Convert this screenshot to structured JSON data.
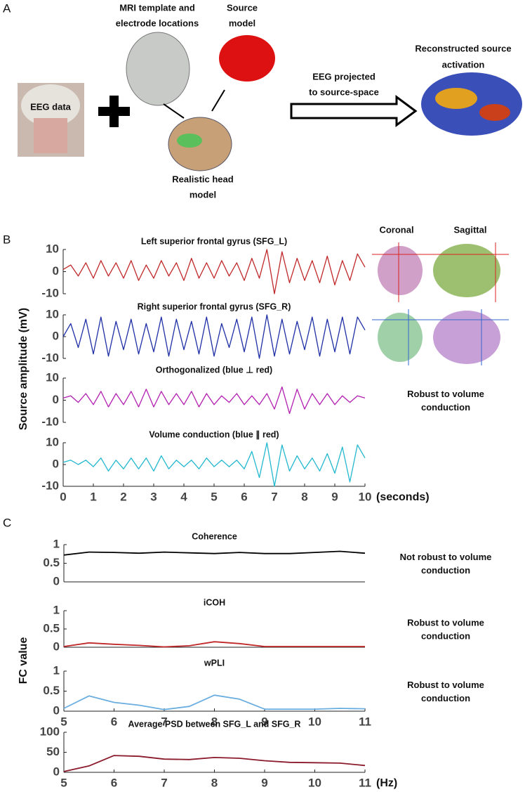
{
  "panel_a": {
    "label": "A",
    "eeg": "EEG data",
    "mri": [
      "MRI template and",
      "electrode locations"
    ],
    "source": [
      "Source",
      "model"
    ],
    "head": [
      "Realistic head",
      "model"
    ],
    "projected": [
      "EEG projected",
      "to source-space"
    ],
    "reconstructed": [
      "Reconstructed source",
      "activation"
    ]
  },
  "panel_b": {
    "label": "B",
    "ylabel": "Source amplitude (mV)",
    "coronal": "Coronal",
    "sagittal": "Sagittal"
  },
  "panel_c": {
    "label": "C",
    "ylabel": "FC value"
  },
  "chart_data": [
    {
      "type": "line",
      "title": "Left superior frontal gyrus (SFG_L)",
      "x": [
        0,
        0.25,
        0.5,
        0.75,
        1,
        1.25,
        1.5,
        1.75,
        2,
        2.25,
        2.5,
        2.75,
        3,
        3.25,
        3.5,
        3.75,
        4,
        4.25,
        4.5,
        4.75,
        5,
        5.25,
        5.5,
        5.75,
        6,
        6.25,
        6.5,
        6.75,
        7,
        7.25,
        7.5,
        7.75,
        8,
        8.25,
        8.5,
        8.75,
        9,
        9.25,
        9.5,
        9.75,
        10
      ],
      "series": [
        {
          "color": "#c0282a",
          "values": [
            1,
            3,
            -2,
            4,
            -3,
            5,
            -2,
            4,
            -3,
            5,
            -4,
            3,
            -3,
            5,
            -2,
            4,
            -4,
            6,
            -3,
            4,
            -3,
            5,
            -2,
            4,
            -4,
            6,
            -3,
            10,
            -10,
            9,
            -5,
            6,
            -4,
            5,
            -5,
            7,
            -6,
            5,
            -4,
            8,
            2
          ]
        }
      ],
      "xlim": [
        0,
        10
      ],
      "ylim": [
        -10,
        10
      ],
      "yticks": [
        -10,
        0,
        10
      ]
    },
    {
      "type": "line",
      "title": "Right superior frontal gyrus (SFG_R)",
      "x": [
        0,
        0.25,
        0.5,
        0.75,
        1,
        1.25,
        1.5,
        1.75,
        2,
        2.25,
        2.5,
        2.75,
        3,
        3.25,
        3.5,
        3.75,
        4,
        4.25,
        4.5,
        4.75,
        5,
        5.25,
        5.5,
        5.75,
        6,
        6.25,
        6.5,
        6.75,
        7,
        7.25,
        7.5,
        7.75,
        8,
        8.25,
        8.5,
        8.75,
        9,
        9.25,
        9.5,
        9.75,
        10
      ],
      "series": [
        {
          "color": "#1f2fa6",
          "values": [
            0,
            6,
            -5,
            8,
            -8,
            9,
            -9,
            7,
            -6,
            8,
            -8,
            6,
            -7,
            9,
            -9,
            8,
            -6,
            7,
            -8,
            9,
            -9,
            6,
            -5,
            8,
            -7,
            9,
            -10,
            10,
            -9,
            8,
            -8,
            7,
            -6,
            9,
            -9,
            8,
            -7,
            9,
            -8,
            9,
            3
          ]
        }
      ],
      "xlim": [
        0,
        10
      ],
      "ylim": [
        -10,
        10
      ],
      "yticks": [
        -10,
        0,
        10
      ]
    },
    {
      "type": "line",
      "title": "Orthogonalized (blue ⊥ red)",
      "annotation": [
        "Robust to volume",
        "conduction"
      ],
      "x": [
        0,
        0.25,
        0.5,
        0.75,
        1,
        1.25,
        1.5,
        1.75,
        2,
        2.25,
        2.5,
        2.75,
        3,
        3.25,
        3.5,
        3.75,
        4,
        4.25,
        4.5,
        4.75,
        5,
        5.25,
        5.5,
        5.75,
        6,
        6.25,
        6.5,
        6.75,
        7,
        7.25,
        7.5,
        7.75,
        8,
        8.25,
        8.5,
        8.75,
        9,
        9.25,
        9.5,
        9.75,
        10
      ],
      "series": [
        {
          "color": "#b21fb0",
          "values": [
            1,
            2,
            -1,
            3,
            -2,
            4,
            -3,
            3,
            -2,
            4,
            -3,
            5,
            -3,
            4,
            -2,
            3,
            -2,
            4,
            -3,
            3,
            -2,
            2,
            -1,
            3,
            -2,
            2,
            -2,
            3,
            -4,
            6,
            -6,
            5,
            -4,
            3,
            -2,
            3,
            -2,
            2,
            -1,
            2,
            1
          ]
        }
      ],
      "xlim": [
        0,
        10
      ],
      "ylim": [
        -10,
        10
      ],
      "yticks": [
        -10,
        0,
        10
      ]
    },
    {
      "type": "line",
      "title": "Volume conduction (blue ∥ red)",
      "x_unit": "(seconds)",
      "x": [
        0,
        0.25,
        0.5,
        0.75,
        1,
        1.25,
        1.5,
        1.75,
        2,
        2.25,
        2.5,
        2.75,
        3,
        3.25,
        3.5,
        3.75,
        4,
        4.25,
        4.5,
        4.75,
        5,
        5.25,
        5.5,
        5.75,
        6,
        6.25,
        6.5,
        6.75,
        7,
        7.25,
        7.5,
        7.75,
        8,
        8.25,
        8.5,
        8.75,
        9,
        9.25,
        9.5,
        9.75,
        10
      ],
      "series": [
        {
          "color": "#22b8cf",
          "values": [
            1,
            2,
            0,
            2,
            -1,
            3,
            -3,
            2,
            -2,
            3,
            -2,
            3,
            -3,
            4,
            -2,
            2,
            -1,
            2,
            -2,
            3,
            -1,
            2,
            -1,
            2,
            -2,
            6,
            -6,
            10,
            -10,
            9,
            -3,
            4,
            -2,
            3,
            -3,
            5,
            -4,
            8,
            -8,
            9,
            3
          ]
        }
      ],
      "xlim": [
        0,
        10
      ],
      "ylim": [
        -10,
        10
      ],
      "yticks": [
        -10,
        0,
        10
      ],
      "xticks": [
        0,
        1,
        2,
        3,
        4,
        5,
        6,
        7,
        8,
        9,
        10
      ]
    },
    {
      "type": "line",
      "title": "Coherence",
      "annotation": [
        "Not robust to volume",
        "conduction"
      ],
      "x": [
        5,
        5.5,
        6,
        6.5,
        7,
        7.5,
        8,
        8.5,
        9,
        9.5,
        10,
        10.5,
        11
      ],
      "series": [
        {
          "color": "#000000",
          "values": [
            0.72,
            0.8,
            0.79,
            0.77,
            0.8,
            0.78,
            0.76,
            0.79,
            0.76,
            0.76,
            0.79,
            0.82,
            0.77
          ]
        }
      ],
      "xlim": [
        5,
        11
      ],
      "ylim": [
        0,
        1
      ],
      "yticks": [
        0,
        0.5,
        1
      ]
    },
    {
      "type": "line",
      "title": "iCOH",
      "annotation": [
        "Robust to volume",
        "conduction"
      ],
      "x": [
        5,
        5.5,
        6,
        6.5,
        7,
        7.5,
        8,
        8.5,
        9,
        9.5,
        10,
        10.5,
        11
      ],
      "series": [
        {
          "color": "#c0282a",
          "values": [
            0.02,
            0.12,
            0.08,
            0.05,
            0.01,
            0.04,
            0.15,
            0.1,
            0.02,
            0.02,
            0.02,
            0.02,
            0.02
          ]
        }
      ],
      "xlim": [
        5,
        11
      ],
      "ylim": [
        0,
        1
      ],
      "yticks": [
        0,
        0.5,
        1
      ]
    },
    {
      "type": "line",
      "title": "wPLI",
      "annotation": [
        "Robust to volume",
        "conduction"
      ],
      "x": [
        5,
        5.5,
        6,
        6.5,
        7,
        7.5,
        8,
        8.5,
        9,
        9.5,
        10,
        10.5,
        11
      ],
      "series": [
        {
          "color": "#6aaee0",
          "values": [
            0.07,
            0.38,
            0.22,
            0.15,
            0.04,
            0.12,
            0.4,
            0.3,
            0.05,
            0.05,
            0.05,
            0.07,
            0.06
          ]
        }
      ],
      "xlim": [
        5,
        11
      ],
      "ylim": [
        0,
        1
      ],
      "yticks": [
        0,
        0.5,
        1
      ],
      "xticks": [
        5,
        6,
        7,
        8,
        9,
        10,
        11
      ]
    },
    {
      "type": "line",
      "title": "Average PSD between SFG_L and SFG_R",
      "x_unit": "(Hz)",
      "x": [
        5,
        5.5,
        6,
        6.5,
        7,
        7.5,
        8,
        8.5,
        9,
        9.5,
        10,
        10.5,
        11
      ],
      "series": [
        {
          "color": "#8b1a2b",
          "values": [
            2,
            16,
            42,
            40,
            33,
            32,
            37,
            35,
            29,
            25,
            24,
            23,
            17
          ]
        }
      ],
      "xlim": [
        5,
        11
      ],
      "ylim": [
        0,
        100
      ],
      "yticks": [
        0,
        50,
        100
      ],
      "xticks": [
        5,
        6,
        7,
        8,
        9,
        10,
        11
      ]
    }
  ]
}
